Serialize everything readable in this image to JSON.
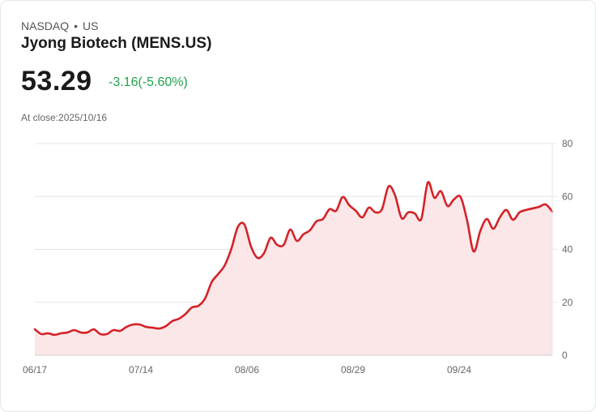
{
  "header": {
    "exchange": "NASDAQ",
    "separator": "•",
    "region": "US",
    "title": "Jyong Biotech (MENS.US)",
    "price": "53.29",
    "change": "-3.16(-5.60%)",
    "change_color": "#1fa34a",
    "close_label": "At close:2025/10/16"
  },
  "colors": {
    "line": "#d42228",
    "fill": "#fbe7e8",
    "grid": "#e5e5e5"
  },
  "chart_data": {
    "type": "area",
    "title": "Jyong Biotech (MENS.US)",
    "xlabel": "",
    "ylabel": "",
    "ylim": [
      0,
      80
    ],
    "yticks": [
      0,
      20,
      40,
      60,
      80
    ],
    "xticks": [
      "06/17",
      "07/14",
      "08/06",
      "08/29",
      "09/24"
    ],
    "grid": true,
    "legend": "none",
    "series": [
      {
        "name": "MENS.US",
        "values": [
          9.8,
          8.0,
          8.3,
          7.7,
          8.3,
          8.6,
          9.5,
          8.6,
          8.6,
          9.8,
          8.0,
          8.0,
          9.5,
          9.2,
          10.7,
          11.6,
          11.6,
          10.7,
          10.4,
          10.1,
          11.0,
          12.9,
          13.8,
          15.6,
          18.1,
          18.7,
          21.5,
          27.6,
          30.7,
          34.0,
          40.2,
          48.5,
          49.4,
          41.1,
          36.8,
          38.6,
          44.4,
          41.7,
          41.7,
          47.5,
          43.2,
          45.7,
          47.2,
          50.6,
          51.5,
          55.2,
          54.6,
          59.8,
          56.7,
          54.6,
          52.1,
          55.8,
          54.0,
          55.2,
          63.8,
          60.4,
          51.8,
          54.0,
          53.6,
          51.5,
          65.3,
          59.5,
          62.0,
          56.4,
          58.9,
          59.8,
          50.9,
          39.2,
          46.9,
          51.5,
          47.8,
          52.1,
          54.9,
          51.2,
          54.0,
          54.9,
          55.5,
          56.1,
          57.0,
          54.3
        ]
      }
    ]
  }
}
